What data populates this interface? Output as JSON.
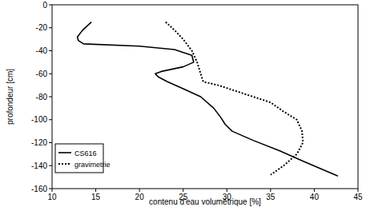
{
  "chart_data": {
    "type": "line",
    "x_label": "contenu d'eau volumétrique  [%]",
    "y_label": "profondeur  [cm]",
    "xlim": [
      10,
      45
    ],
    "xticks": [
      10,
      15,
      20,
      25,
      30,
      35,
      40,
      45
    ],
    "ylim": [
      -160,
      0
    ],
    "yticks": [
      0,
      -20,
      -40,
      -60,
      -80,
      -100,
      -120,
      -140,
      -160
    ],
    "grid": false,
    "legend": "lower left",
    "series": [
      {
        "name": "CS616",
        "color": "#000000",
        "line_style": "solid",
        "x": [
          14.5,
          13.5,
          12.9,
          13.0,
          13.6,
          20.0,
          24.0,
          26.0,
          26.2,
          25.0,
          22.5,
          21.8,
          22.2,
          23.2,
          25.0,
          27.0,
          28.5,
          29.3,
          29.8,
          30.6,
          33.0,
          36.0,
          39.0,
          42.7
        ],
        "values": [
          -15,
          -22,
          -28,
          -31,
          -34,
          -36,
          -39,
          -44,
          -50,
          -54,
          -58,
          -60,
          -63,
          -67,
          -73,
          -80,
          -90,
          -98,
          -104,
          -110,
          -118,
          -127,
          -137,
          -149
        ]
      },
      {
        "name": "gravimetrie",
        "color": "#000000",
        "line_style": "dotted",
        "x": [
          23.0,
          24.0,
          25.0,
          26.0,
          26.6,
          27.0,
          27.3,
          29.0,
          31.0,
          33.0,
          35.0,
          36.5,
          38.0,
          38.6,
          38.7,
          38.0,
          36.5,
          35.0
        ],
        "values": [
          -15,
          -22,
          -30,
          -40,
          -50,
          -60,
          -67,
          -70,
          -75,
          -80,
          -85,
          -93,
          -100,
          -110,
          -120,
          -130,
          -140,
          -148
        ]
      }
    ]
  }
}
